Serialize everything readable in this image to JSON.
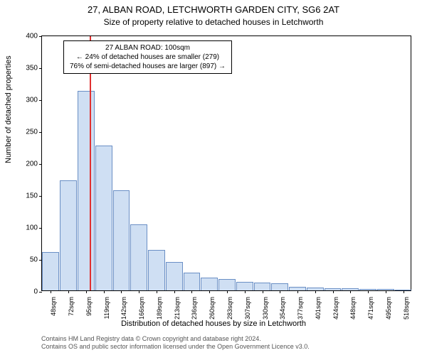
{
  "chart": {
    "type": "histogram",
    "title_line1": "27, ALBAN ROAD, LETCHWORTH GARDEN CITY, SG6 2AT",
    "title_line2": "Size of property relative to detached houses in Letchworth",
    "ylabel": "Number of detached properties",
    "xlabel": "Distribution of detached houses by size in Letchworth",
    "ylim": [
      0,
      400
    ],
    "ytick_step": 50,
    "yticks": [
      0,
      50,
      100,
      150,
      200,
      250,
      300,
      350,
      400
    ],
    "xticks": [
      "48sqm",
      "72sqm",
      "95sqm",
      "119sqm",
      "142sqm",
      "166sqm",
      "189sqm",
      "213sqm",
      "236sqm",
      "260sqm",
      "283sqm",
      "307sqm",
      "330sqm",
      "354sqm",
      "377sqm",
      "401sqm",
      "424sqm",
      "448sqm",
      "471sqm",
      "495sqm",
      "518sqm"
    ],
    "bar_values": [
      60,
      172,
      312,
      227,
      157,
      103,
      63,
      44,
      28,
      20,
      18,
      13,
      12,
      11,
      6,
      4,
      3,
      3,
      2,
      2,
      0
    ],
    "bar_fill": "#cfdff3",
    "bar_stroke": "#6a8fc5",
    "bar_width_ratio": 0.96,
    "background_color": "#ffffff",
    "axis_color": "#000000",
    "tick_fontsize": 10,
    "label_fontsize": 11,
    "title_fontsize1": 13,
    "title_fontsize2": 12,
    "annotation": {
      "title": "27 ALBAN ROAD: 100sqm",
      "line2": "← 24% of detached houses are smaller (279)",
      "line3": "76% of semi-detached houses are larger (897) →",
      "border_color": "#000000",
      "bg_color": "#ffffff"
    },
    "reference_line_value": 100,
    "reference_line_color": "#e03030",
    "x_range": [
      36,
      530
    ]
  },
  "attribution": {
    "line1": "Contains HM Land Registry data © Crown copyright and database right 2024.",
    "line2": "Contains OS and public sector information licensed under the Open Government Licence v3.0."
  }
}
